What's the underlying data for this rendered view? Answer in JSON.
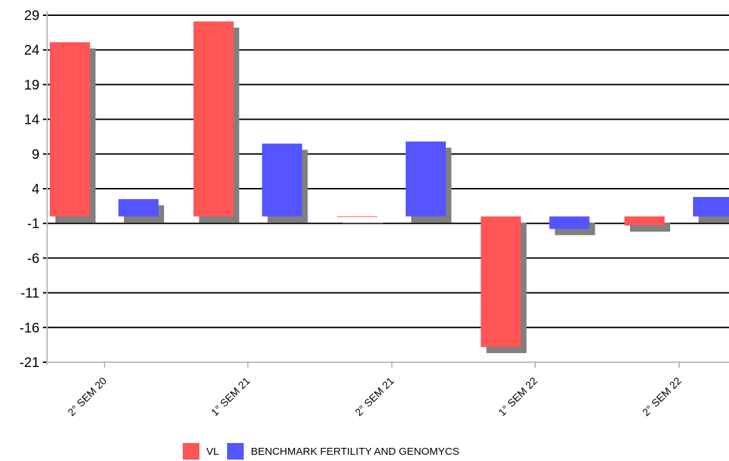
{
  "chart_data": {
    "type": "bar",
    "categories": [
      "2° SEM 20",
      "1° SEM 21",
      "2° SEM 21",
      "1° SEM 22",
      "2° SEM 22"
    ],
    "series": [
      {
        "name": "VL",
        "color": "#ff5555",
        "values": [
          25.1,
          28.1,
          -0.1,
          -18.8,
          -1.3
        ]
      },
      {
        "name": "BENCHMARK FERTILITY AND GENOMYCS",
        "color": "#5555ff",
        "values": [
          2.5,
          10.5,
          10.8,
          -1.8,
          2.8
        ]
      }
    ],
    "shadow_color": "#808080",
    "yticks": [
      29,
      24,
      19,
      14,
      9,
      4,
      -1,
      -6,
      -11,
      -16,
      -21
    ],
    "ylim": [
      -21,
      29
    ],
    "grid": true,
    "legend_position": "bottom"
  }
}
